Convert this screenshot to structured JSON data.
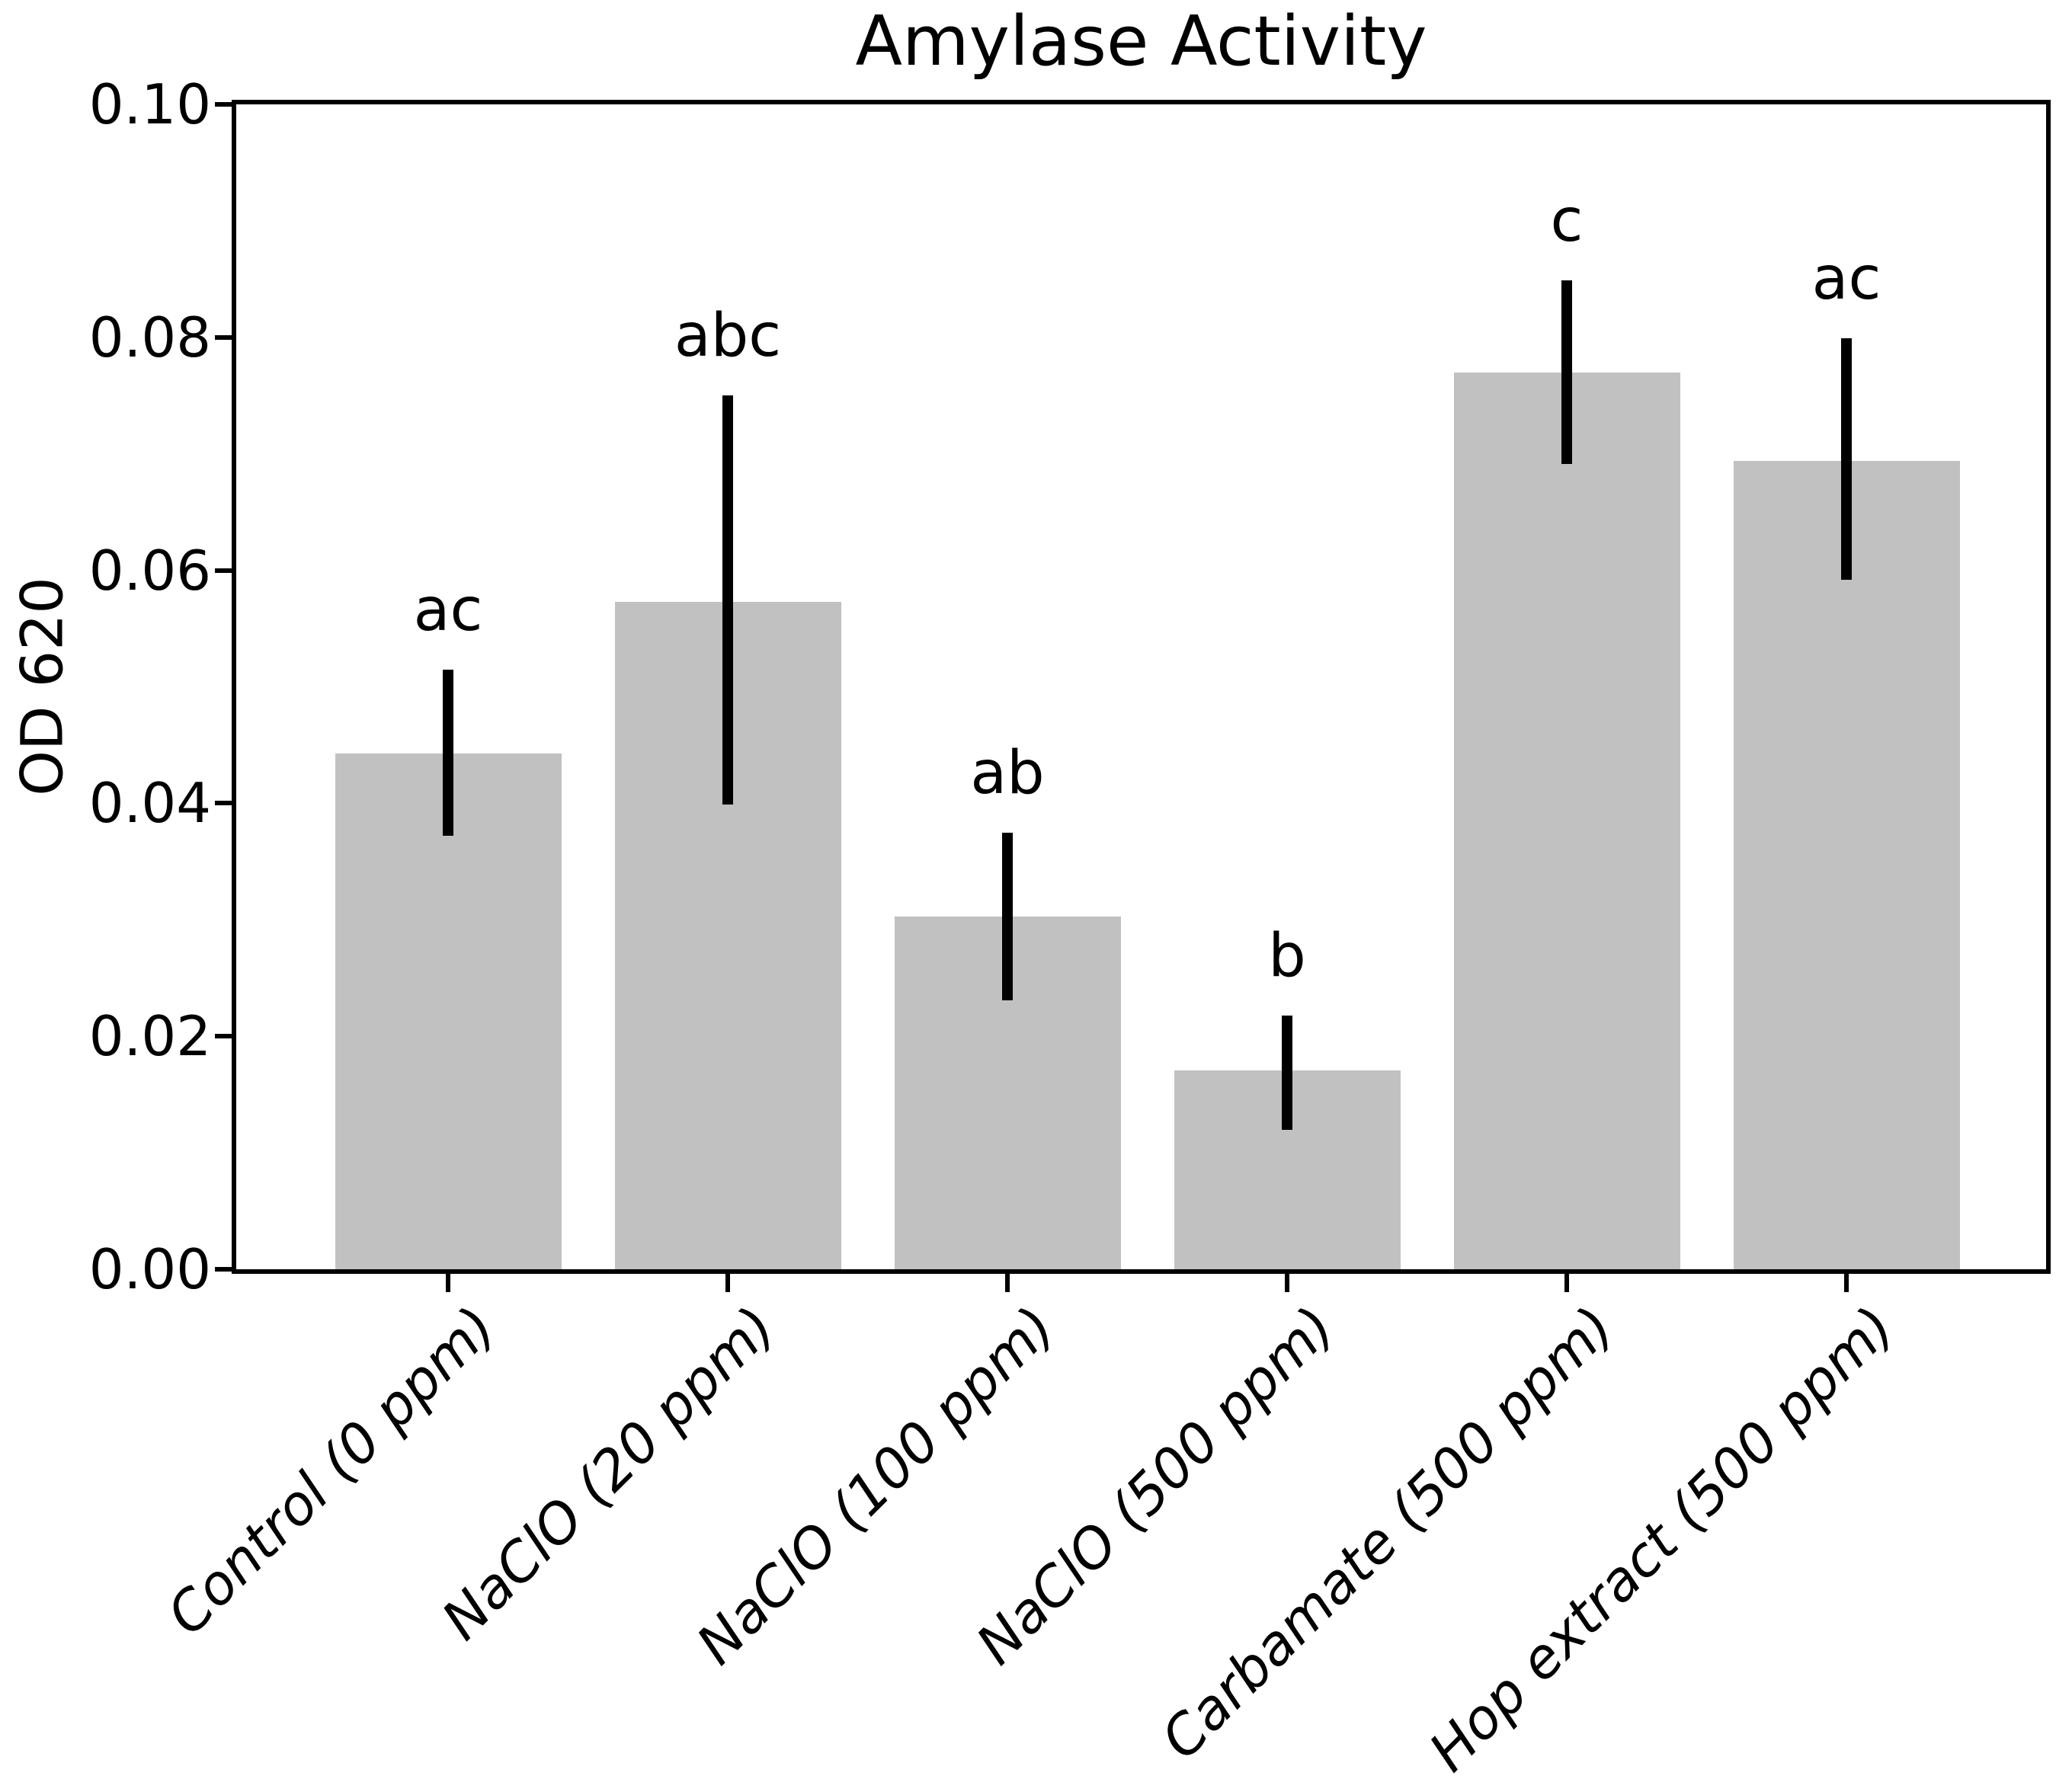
{
  "chart_data": {
    "type": "bar",
    "title": "Amylase Activity",
    "ylabel": "OD 620",
    "xlabel": "",
    "categories": [
      "Control (0 ppm)",
      "NaClO (20 ppm)",
      "NaClO (100 ppm)",
      "NaClO (500 ppm)",
      "Carbamate (500 ppm)",
      "Hop extract (500 ppm)"
    ],
    "values": [
      0.0443,
      0.0573,
      0.0303,
      0.0171,
      0.077,
      0.0694
    ],
    "error_low": [
      0.0372,
      0.0399,
      0.0231,
      0.012,
      0.0691,
      0.0592
    ],
    "error_high": [
      0.0515,
      0.075,
      0.0375,
      0.0218,
      0.0849,
      0.0799
    ],
    "significance_labels": [
      "ac",
      "abc",
      "ab",
      "b",
      "c",
      "ac"
    ],
    "yticks": [
      0.0,
      0.02,
      0.04,
      0.06,
      0.08,
      0.1
    ],
    "ytick_labels": [
      "0.00",
      "0.02",
      "0.04",
      "0.06",
      "0.08",
      "0.10"
    ],
    "ylim": [
      0.0,
      0.1
    ],
    "grid": false,
    "legend_position": "none",
    "bar_color": "#c1c1c1",
    "error_color": "#000000",
    "axis_color": "#000000",
    "background_color": "#ffffff"
  }
}
